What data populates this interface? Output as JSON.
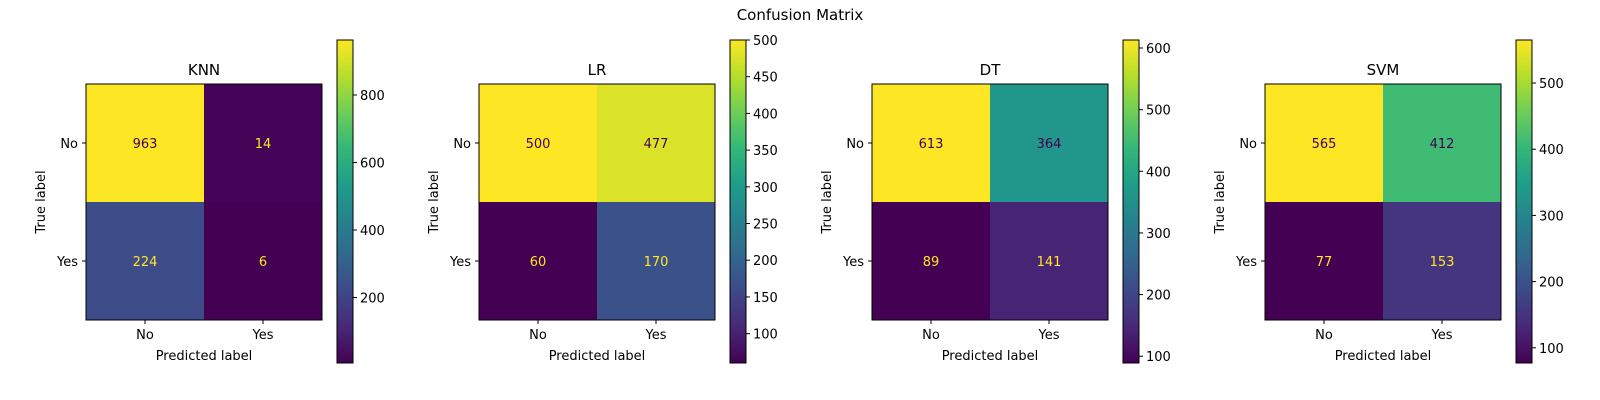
{
  "figure": {
    "title": "Confusion Matrix"
  },
  "chart_data": [
    {
      "type": "heatmap",
      "title": "KNN",
      "xlabel": "Predicted label",
      "ylabel": "True label",
      "x_categories": [
        "No",
        "Yes"
      ],
      "y_categories": [
        "No",
        "Yes"
      ],
      "values": [
        [
          963,
          14
        ],
        [
          224,
          6
        ]
      ],
      "colormap": "viridis",
      "colorbar": {
        "range": [
          6,
          963
        ],
        "ticks": [
          200,
          400,
          600,
          800
        ]
      }
    },
    {
      "type": "heatmap",
      "title": "LR",
      "xlabel": "Predicted label",
      "ylabel": "True label",
      "x_categories": [
        "No",
        "Yes"
      ],
      "y_categories": [
        "No",
        "Yes"
      ],
      "values": [
        [
          500,
          477
        ],
        [
          60,
          170
        ]
      ],
      "colormap": "viridis",
      "colorbar": {
        "range": [
          60,
          500
        ],
        "ticks": [
          100,
          150,
          200,
          250,
          300,
          350,
          400,
          450,
          500
        ]
      }
    },
    {
      "type": "heatmap",
      "title": "DT",
      "xlabel": "Predicted label",
      "ylabel": "True label",
      "x_categories": [
        "No",
        "Yes"
      ],
      "y_categories": [
        "No",
        "Yes"
      ],
      "values": [
        [
          613,
          364
        ],
        [
          89,
          141
        ]
      ],
      "colormap": "viridis",
      "colorbar": {
        "range": [
          89,
          613
        ],
        "ticks": [
          100,
          200,
          300,
          400,
          500,
          600
        ]
      }
    },
    {
      "type": "heatmap",
      "title": "SVM",
      "xlabel": "Predicted label",
      "ylabel": "True label",
      "x_categories": [
        "No",
        "Yes"
      ],
      "y_categories": [
        "No",
        "Yes"
      ],
      "values": [
        [
          565,
          412
        ],
        [
          77,
          153
        ]
      ],
      "colormap": "viridis",
      "colorbar": {
        "range": [
          77,
          565
        ],
        "ticks": [
          100,
          200,
          300,
          400,
          500
        ]
      }
    }
  ]
}
